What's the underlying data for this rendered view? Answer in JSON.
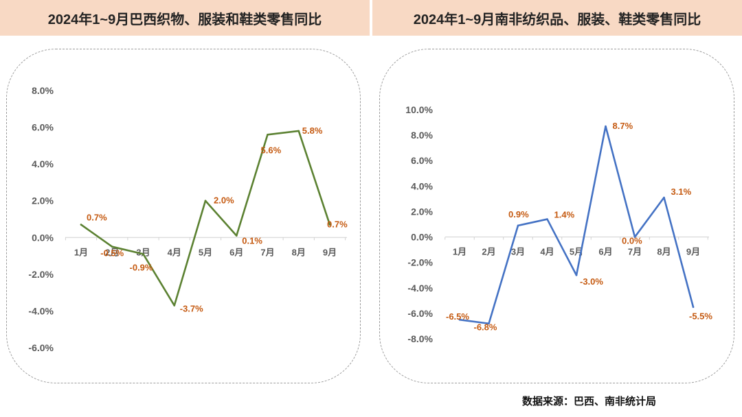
{
  "chart_data": [
    {
      "type": "line",
      "title": "2024年1~9月巴西织物、服装和鞋类零售同比",
      "categories": [
        "1月",
        "2月",
        "3月",
        "4月",
        "5月",
        "6月",
        "7月",
        "8月",
        "9月"
      ],
      "values": [
        0.7,
        -0.5,
        -0.9,
        -3.7,
        2.0,
        0.1,
        5.6,
        5.8,
        0.7
      ],
      "data_labels": [
        "0.7%",
        "-0.5%",
        "-0.9%",
        "-3.7%",
        "2.0%",
        "0.1%",
        "5.6%",
        "5.8%",
        "0.7%"
      ],
      "yticks": [
        "8.0%",
        "6.0%",
        "4.0%",
        "2.0%",
        "0.0%",
        "-2.0%",
        "-4.0%",
        "-6.0%"
      ],
      "ylim": [
        -6,
        8
      ],
      "line_color": "#5b8131",
      "label_color": "#c55a11",
      "grid": false
    },
    {
      "type": "line",
      "title": "2024年1~9月南非纺织品、服装、鞋类零售同比",
      "categories": [
        "1月",
        "2月",
        "3月",
        "4月",
        "5月",
        "6月",
        "7月",
        "8月",
        "9月"
      ],
      "values": [
        -6.5,
        -6.8,
        0.9,
        1.4,
        -3.0,
        8.7,
        0.0,
        3.1,
        -5.5
      ],
      "data_labels": [
        "-6.5%",
        "-6.8%",
        "0.9%",
        "1.4%",
        "-3.0%",
        "8.7%",
        "0.0%",
        "3.1%",
        "-5.5%"
      ],
      "yticks": [
        "10.0%",
        "8.0%",
        "6.0%",
        "4.0%",
        "2.0%",
        "0.0%",
        "-2.0%",
        "-4.0%",
        "-6.0%",
        "-8.0%"
      ],
      "ylim": [
        -8,
        10
      ],
      "line_color": "#4472c4",
      "label_color": "#c55a11",
      "grid": false
    }
  ],
  "source": "数据来源：巴西、南非统计局"
}
